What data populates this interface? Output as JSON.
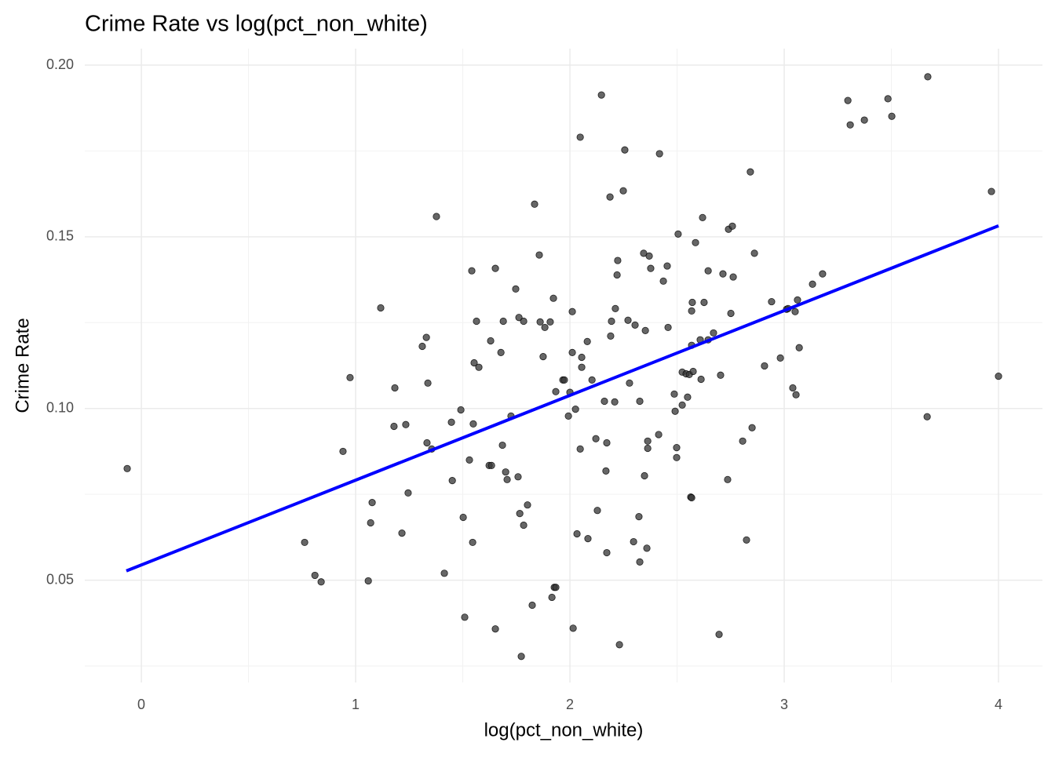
{
  "chart_data": {
    "type": "scatter",
    "title": "Crime Rate vs log(pct_non_white)",
    "x_label": "log(pct_non_white)",
    "y_label": "Crime Rate",
    "xlim": [
      -0.264,
      4.205
    ],
    "ylim": [
      0.0202,
      0.2048
    ],
    "xticks": [
      0,
      1,
      2,
      3,
      4
    ],
    "yticks": [
      0.05,
      {
        "value": 0.1,
        "label": "0.10"
      },
      0.15,
      {
        "value": 0.2,
        "label": "0.20"
      }
    ],
    "xminor_ticks": [
      0.5,
      1.5,
      2.5,
      3.5
    ],
    "yminor_ticks": [
      0.025,
      0.075,
      0.125,
      0.175
    ],
    "grid": true,
    "color": "#333333",
    "x": [
      -0.066,
      0.762,
      0.81,
      0.839,
      0.941,
      0.974,
      1.059,
      1.07,
      1.077,
      1.117,
      1.179,
      1.183,
      1.216,
      1.234,
      1.245,
      1.311,
      1.33,
      1.333,
      1.337,
      1.355,
      1.377,
      1.414,
      1.447,
      1.451,
      1.491,
      1.502,
      1.509,
      1.531,
      1.542,
      1.546,
      1.549,
      1.553,
      1.564,
      1.575,
      1.623,
      1.63,
      1.634,
      1.652,
      1.652,
      1.678,
      1.685,
      1.689,
      1.7,
      1.707,
      1.725,
      1.747,
      1.758,
      1.762,
      1.766,
      1.773,
      1.784,
      1.784,
      1.802,
      1.824,
      1.835,
      1.857,
      1.861,
      1.875,
      1.883,
      1.908,
      1.916,
      1.923,
      1.927,
      1.934,
      1.934,
      1.967,
      1.974,
      1.993,
      2.0,
      2.011,
      2.011,
      2.015,
      2.026,
      2.033,
      2.048,
      2.048,
      2.055,
      2.055,
      2.081,
      2.084,
      2.103,
      2.121,
      2.128,
      2.147,
      2.161,
      2.168,
      2.172,
      2.172,
      2.187,
      2.19,
      2.194,
      2.209,
      2.212,
      2.22,
      2.223,
      2.231,
      2.249,
      2.256,
      2.271,
      2.278,
      2.297,
      2.304,
      2.322,
      2.326,
      2.326,
      2.344,
      2.348,
      2.352,
      2.359,
      2.363,
      2.363,
      2.37,
      2.377,
      2.414,
      2.418,
      2.436,
      2.454,
      2.458,
      2.487,
      2.491,
      2.498,
      2.498,
      2.505,
      2.524,
      2.524,
      2.542,
      2.549,
      2.557,
      2.564,
      2.568,
      2.568,
      2.568,
      2.571,
      2.575,
      2.586,
      2.608,
      2.612,
      2.619,
      2.626,
      2.645,
      2.645,
      2.67,
      2.696,
      2.703,
      2.714,
      2.736,
      2.74,
      2.751,
      2.758,
      2.762,
      2.806,
      2.824,
      2.842,
      2.85,
      2.861,
      2.908,
      2.941,
      2.982,
      3.011,
      3.018,
      3.04,
      3.051,
      3.055,
      3.062,
      3.07,
      3.132,
      3.179,
      3.297,
      3.308,
      3.374,
      3.484,
      3.502,
      3.667,
      3.67,
      3.967,
      4.0
    ],
    "values": [
      0.0825,
      0.061,
      0.0514,
      0.0495,
      0.0875,
      0.109,
      0.0498,
      0.0667,
      0.0726,
      0.1293,
      0.0948,
      0.106,
      0.0637,
      0.0953,
      0.0754,
      0.1181,
      0.1207,
      0.09,
      0.1074,
      0.0882,
      0.1559,
      0.052,
      0.096,
      0.079,
      0.0996,
      0.0683,
      0.0392,
      0.085,
      0.1401,
      0.061,
      0.0955,
      0.1133,
      0.1254,
      0.112,
      0.0834,
      0.1197,
      0.0834,
      0.0358,
      0.1408,
      0.1163,
      0.0893,
      0.1254,
      0.0815,
      0.0793,
      0.0978,
      0.1348,
      0.0801,
      0.1265,
      0.0694,
      0.0278,
      0.1254,
      0.066,
      0.0719,
      0.0427,
      0.1595,
      0.1447,
      0.1252,
      0.1151,
      0.1236,
      0.1252,
      0.045,
      0.1321,
      0.0479,
      0.0479,
      0.1049,
      0.1083,
      0.1083,
      0.0978,
      0.1047,
      0.1282,
      0.1163,
      0.036,
      0.0998,
      0.0635,
      0.179,
      0.0882,
      0.1149,
      0.112,
      0.1195,
      0.0621,
      0.1083,
      0.0912,
      0.0703,
      0.1913,
      0.1021,
      0.0818,
      0.09,
      0.058,
      0.1616,
      0.1211,
      0.1254,
      0.1019,
      0.1291,
      0.1389,
      0.1431,
      0.0312,
      0.1634,
      0.1753,
      0.1257,
      0.1074,
      0.0612,
      0.1243,
      0.0685,
      0.1021,
      0.0553,
      0.1452,
      0.0804,
      0.1227,
      0.0593,
      0.0905,
      0.0884,
      0.1444,
      0.1408,
      0.0924,
      0.1742,
      0.1371,
      0.1415,
      0.1236,
      0.1042,
      0.0992,
      0.0886,
      0.0857,
      0.1508,
      0.1106,
      0.101,
      0.1101,
      0.1033,
      0.1099,
      0.0742,
      0.074,
      0.1284,
      0.1184,
      0.1309,
      0.1108,
      0.1483,
      0.12,
      0.1085,
      0.1556,
      0.1309,
      0.1401,
      0.12,
      0.122,
      0.0342,
      0.1097,
      0.1392,
      0.0793,
      0.1522,
      0.1277,
      0.1531,
      0.1383,
      0.0905,
      0.0617,
      0.1689,
      0.0944,
      0.1452,
      0.1124,
      0.1311,
      0.1147,
      0.1289,
      0.1291,
      0.106,
      0.1282,
      0.104,
      0.1316,
      0.1177,
      0.1362,
      0.1392,
      0.1897,
      0.1826,
      0.184,
      0.1902,
      0.1851,
      0.0976,
      0.1966,
      0.1632,
      0.1094
    ],
    "trend_line": {
      "x": [
        -0.07,
        4.0
      ],
      "values": [
        0.0527,
        0.1532
      ],
      "color": "#0000ff"
    }
  }
}
